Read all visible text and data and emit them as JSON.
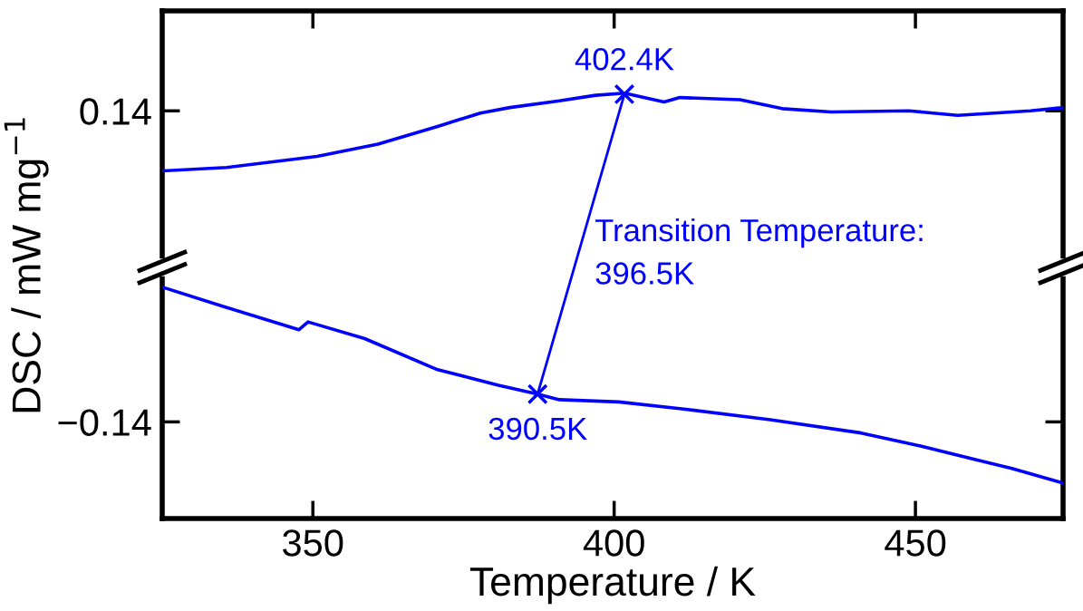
{
  "chart_data": {
    "type": "line",
    "xlabel": "Temperature / K",
    "ylabel": "DSC / mW mg$^{−1}$",
    "xlim": [
      325,
      474.5
    ],
    "xticks": [
      350,
      400,
      450
    ],
    "ylim": [
      -0.227,
      0.23
    ],
    "yticks": [
      {
        "value": -0.14,
        "label": "−0.14"
      },
      0.14
    ],
    "grid": false,
    "legend": false,
    "series": [
      {
        "color": "#0000ff",
        "marker": "none",
        "x": [
          325.2,
          335.7,
          350.7,
          360.8,
          370.7,
          377.8,
          382.7,
          390.9,
          396.9,
          401.7,
          408.3,
          410.9,
          420.9,
          427.9,
          436,
          448.9,
          457,
          469.1,
          474.5
        ],
        "values": [
          0.086,
          0.089,
          0.099,
          0.11,
          0.126,
          0.138,
          0.143,
          0.149,
          0.154,
          0.156,
          0.148,
          0.152,
          0.15,
          0.142,
          0.139,
          0.14,
          0.136,
          0.14,
          0.143
        ]
      },
      {
        "color": "#0000ff",
        "marker": "none",
        "x": [
          325.2,
          335.7,
          347.7,
          349.2,
          358.6,
          370.7,
          380.8,
          387.3,
          390.9,
          400.8,
          410.9,
          425.9,
          441,
          451,
          466,
          474.5
        ],
        "values": [
          -0.019,
          -0.037,
          -0.057,
          -0.05,
          -0.065,
          -0.093,
          -0.107,
          -0.115,
          -0.12,
          -0.122,
          -0.128,
          -0.138,
          -0.15,
          -0.162,
          -0.182,
          -0.195
        ]
      },
      {
        "color": "#0000ff",
        "marker": "cross",
        "x": [
          387.3,
          401.7
        ],
        "values": [
          -0.115,
          0.155
        ]
      }
    ],
    "annotations": [
      {
        "text": "402.4K",
        "x": 401.7,
        "y": 0.155
      },
      {
        "text": "390.5K",
        "x": 387.3,
        "y": -0.115
      },
      "Transition Temperature:\n396.5K"
    ]
  }
}
